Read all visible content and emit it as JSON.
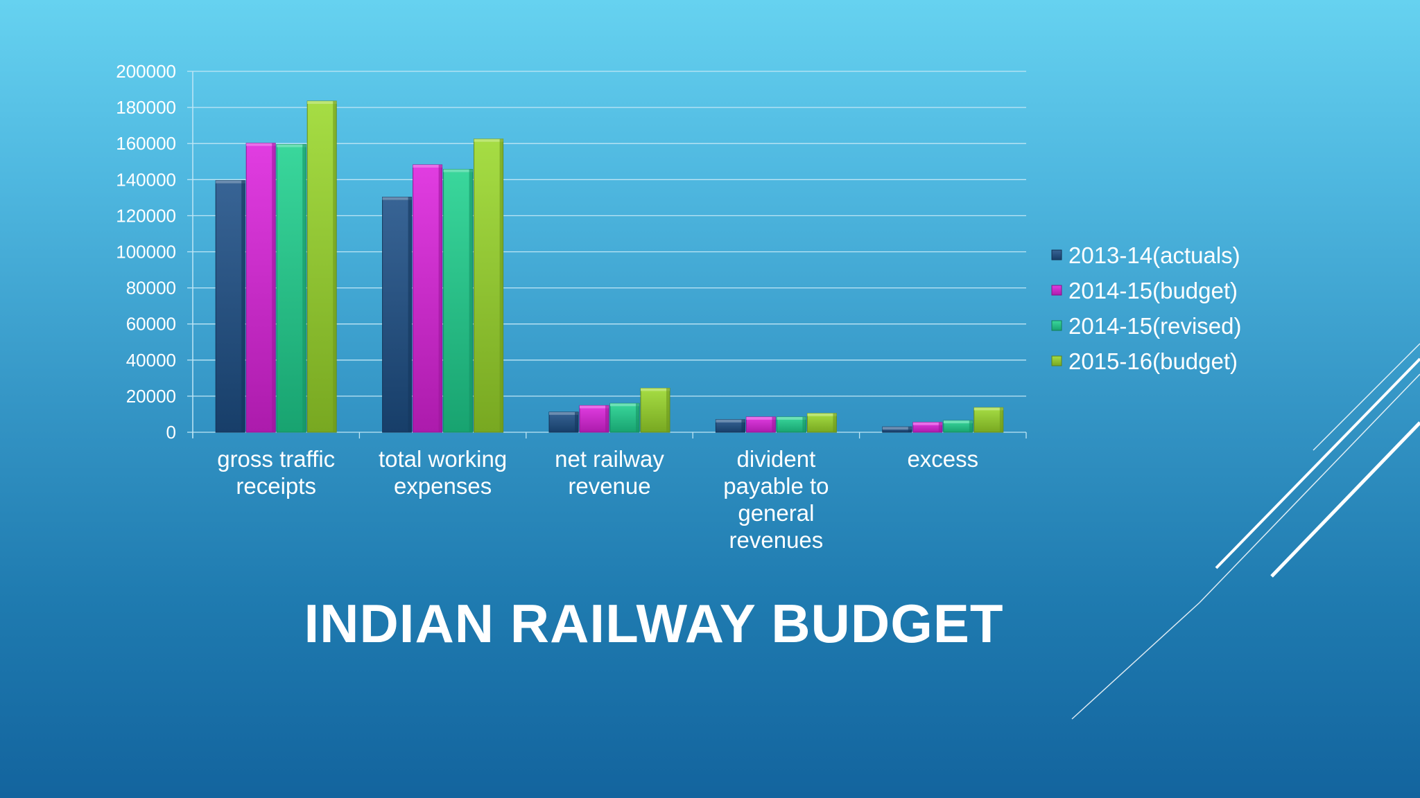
{
  "slide": {
    "title": "INDIAN RAILWAY BUDGET"
  },
  "colors": {
    "background_top": "#66d2f0",
    "background_bottom": "#13649e",
    "gridline": "#bfe6f5",
    "text": "#ffffff"
  },
  "chart_data": {
    "type": "bar",
    "style": "3d-clustered-column",
    "categories": [
      [
        "gross traffic",
        "receipts"
      ],
      [
        "total working",
        "expenses"
      ],
      [
        "net railway",
        "revenue"
      ],
      [
        "divident",
        "payable to",
        "general",
        "revenues"
      ],
      [
        "excess"
      ]
    ],
    "series": [
      {
        "name": "2013-14(actuals)",
        "color": "#1d4f86",
        "values": [
          139500,
          130300,
          11200,
          7000,
          3000
        ]
      },
      {
        "name": "2014-15(budget)",
        "color": "#dd22dd",
        "values": [
          160200,
          148200,
          14800,
          8500,
          5500
        ]
      },
      {
        "name": "2014-15(revised)",
        "color": "#1fd18f",
        "values": [
          159500,
          145700,
          16000,
          8500,
          6500
        ]
      },
      {
        "name": "2015-16(budget)",
        "color": "#9ad82a",
        "values": [
          183500,
          162500,
          24400,
          10500,
          13700
        ]
      }
    ],
    "yticks": [
      "0",
      "20000",
      "40000",
      "60000",
      "80000",
      "100000",
      "120000",
      "140000",
      "160000",
      "180000",
      "200000"
    ],
    "ylim": [
      0,
      200000
    ],
    "grid": true,
    "legend_position": "right"
  }
}
